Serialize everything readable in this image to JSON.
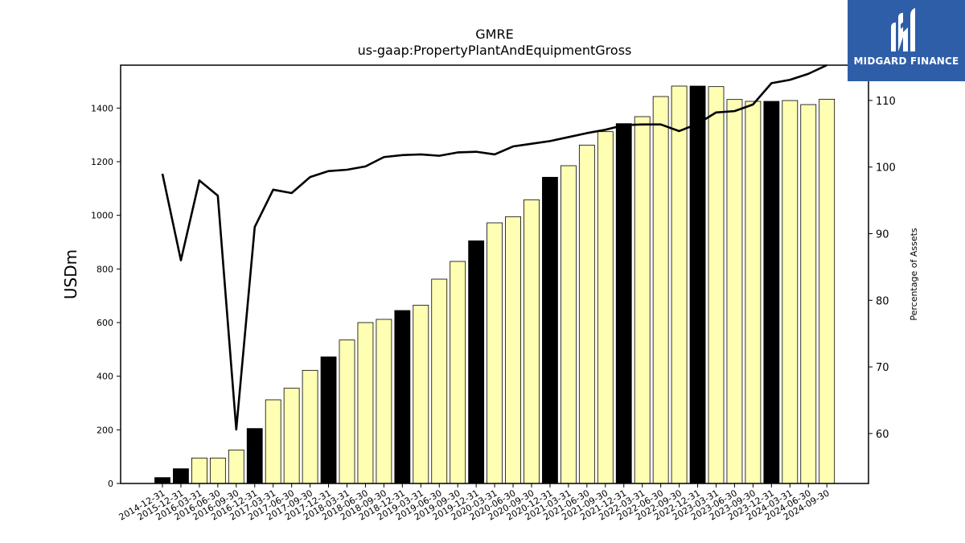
{
  "chart_data": {
    "type": "bar",
    "title": "GMRE",
    "subtitle": "us-gaap:PropertyPlantAndEquipmentGross",
    "ylabel": "USDm",
    "y2label": "Percentage of Assets",
    "ylim": [
      0,
      1560
    ],
    "y2lim": [
      52.5,
      115.3
    ],
    "yticks": [
      0,
      200,
      400,
      600,
      800,
      1000,
      1200,
      1400
    ],
    "y2ticks": [
      60,
      70,
      80,
      90,
      100,
      110
    ],
    "grid": false,
    "categories": [
      "2014-12-31",
      "2015-12-31",
      "2016-03-31",
      "2016-06-30",
      "2016-09-30",
      "2016-12-31",
      "2017-03-31",
      "2017-06-30",
      "2017-09-30",
      "2017-12-31",
      "2018-03-31",
      "2018-06-30",
      "2018-09-30",
      "2018-12-31",
      "2019-03-31",
      "2019-06-30",
      "2019-09-30",
      "2019-12-31",
      "2020-03-31",
      "2020-06-30",
      "2020-09-30",
      "2020-12-31",
      "2021-03-31",
      "2021-06-30",
      "2021-09-30",
      "2021-12-31",
      "2022-03-31",
      "2022-06-30",
      "2022-09-30",
      "2022-12-31",
      "2023-03-31",
      "2023-06-30",
      "2023-09-30",
      "2023-12-31",
      "2024-03-31",
      "2024-06-30",
      "2024-09-30"
    ],
    "series": [
      {
        "kind": "bar",
        "values": [
          22,
          55,
          95,
          95,
          125,
          205,
          312,
          355,
          422,
          472,
          535,
          600,
          612,
          645,
          665,
          762,
          828,
          905,
          972,
          995,
          1058,
          1142,
          1185,
          1262,
          1312,
          1342,
          1368,
          1443,
          1482,
          1482,
          1480,
          1432,
          1425,
          1425,
          1428,
          1413,
          1433
        ],
        "highlight_color": "#000000",
        "color": "#ffffb3",
        "highlight": [
          true,
          true,
          false,
          false,
          false,
          true,
          false,
          false,
          false,
          true,
          false,
          false,
          false,
          true,
          false,
          false,
          false,
          true,
          false,
          false,
          false,
          true,
          false,
          false,
          false,
          true,
          false,
          false,
          false,
          true,
          false,
          false,
          false,
          true,
          false,
          false,
          false
        ]
      },
      {
        "kind": "line",
        "axis": "right",
        "color": "#000000",
        "values": [
          99.0,
          86.0,
          98.0,
          95.7,
          60.6,
          91.0,
          96.6,
          96.1,
          98.5,
          99.4,
          99.6,
          100.1,
          101.5,
          101.8,
          101.9,
          101.7,
          102.2,
          102.3,
          101.9,
          103.1,
          103.5,
          103.9,
          104.5,
          105.1,
          105.6,
          106.3,
          106.4,
          106.4,
          105.4,
          106.5,
          108.2,
          108.4,
          109.4,
          112.6,
          113.1,
          114.0,
          115.3
        ]
      }
    ]
  },
  "logo": {
    "text": "MIDGARD FINANCE",
    "icon": "midgard-logo-icon",
    "color": "#2f5ea8"
  }
}
